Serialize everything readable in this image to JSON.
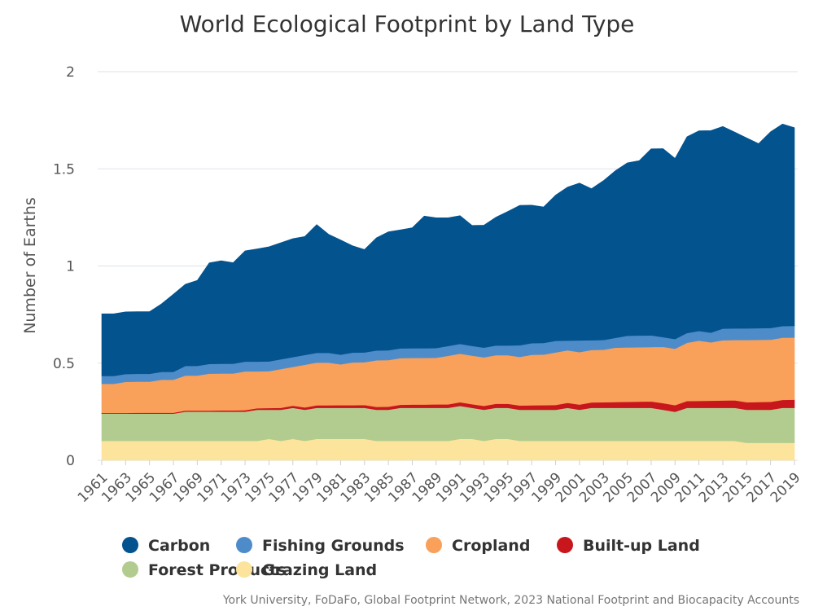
{
  "chart_data": {
    "type": "area",
    "stacked": true,
    "title": "World Ecological Footprint by Land Type",
    "xlabel": "",
    "ylabel": "Number of Earths",
    "credits": "York University, FoDaFo, Global Footprint Network, 2023 National Footprint and Biocapacity Accounts",
    "ylim": [
      0,
      2
    ],
    "yticks": [
      "0",
      "0.5",
      "1",
      "1.5",
      "2"
    ],
    "grid": true,
    "legend_position": "bottom",
    "x": [
      1961,
      1962,
      1963,
      1964,
      1965,
      1966,
      1967,
      1968,
      1969,
      1970,
      1971,
      1972,
      1973,
      1974,
      1975,
      1976,
      1977,
      1978,
      1979,
      1980,
      1981,
      1982,
      1983,
      1984,
      1985,
      1986,
      1987,
      1988,
      1989,
      1990,
      1991,
      1992,
      1993,
      1994,
      1995,
      1996,
      1997,
      1998,
      1999,
      2000,
      2001,
      2002,
      2003,
      2004,
      2005,
      2006,
      2007,
      2008,
      2009,
      2010,
      2011,
      2012,
      2013,
      2014,
      2015,
      2016,
      2017,
      2018,
      2019
    ],
    "xtick_labels": [
      "1961",
      "1963",
      "1965",
      "1967",
      "1969",
      "1971",
      "1973",
      "1975",
      "1977",
      "1979",
      "1981",
      "1983",
      "1985",
      "1987",
      "1989",
      "1991",
      "1993",
      "1995",
      "1997",
      "1999",
      "2001",
      "2003",
      "2005",
      "2007",
      "2009",
      "2011",
      "2013",
      "2015",
      "2017",
      "2019"
    ],
    "series": [
      {
        "name": "Grazing Land",
        "color": "#fde49c",
        "values": [
          0.1,
          0.1,
          0.1,
          0.1,
          0.1,
          0.1,
          0.1,
          0.1,
          0.1,
          0.1,
          0.1,
          0.1,
          0.1,
          0.1,
          0.11,
          0.1,
          0.11,
          0.1,
          0.11,
          0.11,
          0.11,
          0.11,
          0.11,
          0.1,
          0.1,
          0.1,
          0.1,
          0.1,
          0.1,
          0.1,
          0.11,
          0.11,
          0.1,
          0.11,
          0.11,
          0.1,
          0.1,
          0.1,
          0.1,
          0.1,
          0.1,
          0.1,
          0.1,
          0.1,
          0.1,
          0.1,
          0.1,
          0.1,
          0.1,
          0.1,
          0.1,
          0.1,
          0.1,
          0.1,
          0.09,
          0.09,
          0.09,
          0.09,
          0.09
        ]
      },
      {
        "name": "Forest Products",
        "color": "#b2cc8f",
        "values": [
          0.14,
          0.14,
          0.14,
          0.14,
          0.14,
          0.14,
          0.14,
          0.15,
          0.15,
          0.15,
          0.15,
          0.15,
          0.15,
          0.16,
          0.15,
          0.16,
          0.16,
          0.16,
          0.16,
          0.16,
          0.16,
          0.16,
          0.16,
          0.16,
          0.16,
          0.17,
          0.17,
          0.17,
          0.17,
          0.17,
          0.17,
          0.16,
          0.16,
          0.16,
          0.16,
          0.16,
          0.16,
          0.16,
          0.16,
          0.17,
          0.16,
          0.17,
          0.17,
          0.17,
          0.17,
          0.17,
          0.17,
          0.16,
          0.15,
          0.17,
          0.17,
          0.17,
          0.17,
          0.17,
          0.17,
          0.17,
          0.17,
          0.18,
          0.18
        ]
      },
      {
        "name": "Built-up Land",
        "color": "#c8161d",
        "values": [
          0.004,
          0.004,
          0.004,
          0.005,
          0.005,
          0.005,
          0.005,
          0.006,
          0.006,
          0.006,
          0.007,
          0.007,
          0.008,
          0.008,
          0.009,
          0.01,
          0.011,
          0.012,
          0.013,
          0.013,
          0.014,
          0.014,
          0.015,
          0.015,
          0.016,
          0.016,
          0.017,
          0.017,
          0.018,
          0.018,
          0.019,
          0.019,
          0.02,
          0.021,
          0.021,
          0.022,
          0.023,
          0.024,
          0.025,
          0.026,
          0.027,
          0.028,
          0.029,
          0.03,
          0.031,
          0.032,
          0.033,
          0.034,
          0.034,
          0.035,
          0.036,
          0.037,
          0.038,
          0.039,
          0.039,
          0.04,
          0.041,
          0.041,
          0.042
        ]
      },
      {
        "name": "Cropland",
        "color": "#f9a05a",
        "values": [
          0.15,
          0.15,
          0.16,
          0.16,
          0.16,
          0.17,
          0.17,
          0.18,
          0.18,
          0.19,
          0.19,
          0.19,
          0.2,
          0.19,
          0.19,
          0.2,
          0.2,
          0.22,
          0.22,
          0.22,
          0.21,
          0.22,
          0.22,
          0.24,
          0.24,
          0.24,
          0.24,
          0.24,
          0.24,
          0.25,
          0.25,
          0.25,
          0.25,
          0.25,
          0.25,
          0.25,
          0.26,
          0.26,
          0.27,
          0.27,
          0.27,
          0.27,
          0.27,
          0.28,
          0.28,
          0.28,
          0.28,
          0.29,
          0.29,
          0.3,
          0.31,
          0.3,
          0.31,
          0.31,
          0.32,
          0.32,
          0.32,
          0.32,
          0.32
        ]
      },
      {
        "name": "Fishing Grounds",
        "color": "#4e8cc9",
        "values": [
          0.04,
          0.04,
          0.04,
          0.04,
          0.04,
          0.04,
          0.04,
          0.05,
          0.05,
          0.05,
          0.05,
          0.05,
          0.05,
          0.05,
          0.05,
          0.05,
          0.05,
          0.05,
          0.05,
          0.05,
          0.05,
          0.05,
          0.05,
          0.05,
          0.05,
          0.05,
          0.05,
          0.05,
          0.05,
          0.05,
          0.05,
          0.05,
          0.05,
          0.05,
          0.05,
          0.06,
          0.06,
          0.06,
          0.06,
          0.05,
          0.06,
          0.05,
          0.05,
          0.05,
          0.06,
          0.06,
          0.06,
          0.05,
          0.05,
          0.05,
          0.05,
          0.05,
          0.06,
          0.06,
          0.06,
          0.06,
          0.06,
          0.06,
          0.06
        ]
      },
      {
        "name": "Carbon",
        "color": "#03538f",
        "values": [
          0.32,
          0.32,
          0.32,
          0.32,
          0.32,
          0.35,
          0.4,
          0.42,
          0.44,
          0.52,
          0.53,
          0.52,
          0.57,
          0.58,
          0.59,
          0.6,
          0.61,
          0.61,
          0.66,
          0.61,
          0.59,
          0.55,
          0.53,
          0.58,
          0.61,
          0.61,
          0.62,
          0.68,
          0.67,
          0.66,
          0.66,
          0.62,
          0.63,
          0.66,
          0.69,
          0.72,
          0.71,
          0.7,
          0.75,
          0.79,
          0.81,
          0.78,
          0.82,
          0.86,
          0.89,
          0.9,
          0.96,
          0.97,
          0.93,
          1.01,
          1.03,
          1.04,
          1.04,
          1.01,
          0.98,
          0.95,
          1.01,
          1.04,
          1.02
        ]
      }
    ],
    "legend_order": [
      "Carbon",
      "Fishing Grounds",
      "Cropland",
      "Built-up Land",
      "Forest Products",
      "Grazing Land"
    ]
  }
}
